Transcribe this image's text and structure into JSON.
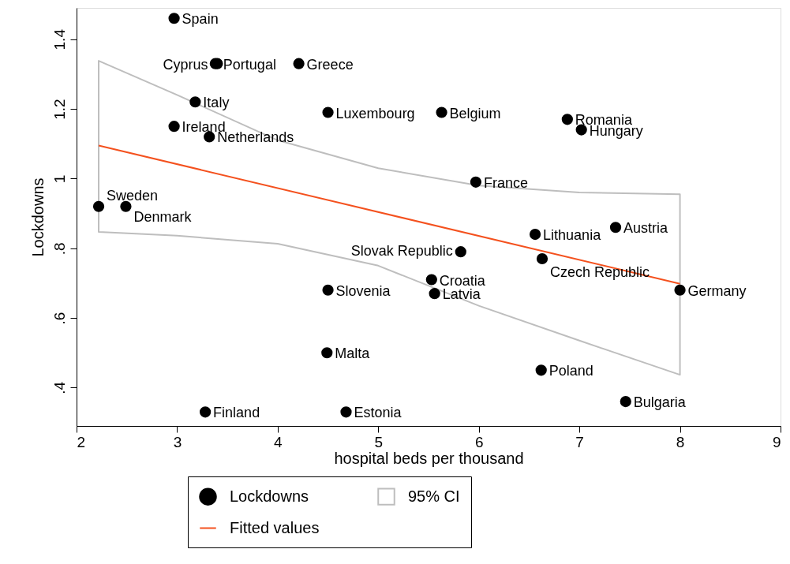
{
  "chart_data": {
    "type": "scatter",
    "xlabel": "hospital beds per thousand",
    "ylabel": "Lockdowns",
    "xlim": [
      2,
      9
    ],
    "ylim": [
      0.29,
      1.49
    ],
    "xticks": [
      2,
      3,
      4,
      5,
      6,
      7,
      8,
      9
    ],
    "yticks": [
      {
        "value": 0.4,
        "label": ".4"
      },
      {
        "value": 0.6,
        "label": ".6"
      },
      {
        "value": 0.8,
        "label": ".8"
      },
      {
        "value": 1,
        "label": "1"
      },
      {
        "value": 1.2,
        "label": "1.2"
      },
      {
        "value": 1.4,
        "label": "1.4"
      }
    ],
    "grid": false,
    "legend": "bottom",
    "series": [
      {
        "name": "Lockdowns",
        "color": "#000000",
        "x": [
          2.97,
          3.4,
          3.38,
          4.21,
          3.18,
          4.5,
          5.63,
          2.97,
          3.32,
          6.88,
          7.02,
          5.97,
          2.22,
          2.49,
          7.36,
          6.56,
          5.82,
          6.63,
          5.53,
          8.0,
          4.5,
          5.56,
          4.49,
          6.62,
          7.46,
          3.28,
          4.68
        ],
        "values": [
          1.46,
          1.33,
          1.33,
          1.33,
          1.22,
          1.19,
          1.19,
          1.15,
          1.12,
          1.17,
          1.14,
          0.99,
          0.92,
          0.92,
          0.86,
          0.84,
          0.79,
          0.77,
          0.71,
          0.68,
          0.68,
          0.67,
          0.5,
          0.45,
          0.36,
          0.33,
          0.33
        ]
      },
      {
        "name": "Fitted values",
        "type": "line",
        "color": "#f4511e",
        "x": [
          2.22,
          8.0
        ],
        "values": [
          1.095,
          0.698
        ]
      },
      {
        "name": "95% CI",
        "type": "area",
        "color": "#bebebe",
        "x": [
          2.22,
          3,
          4,
          5,
          6,
          7,
          8.0
        ],
        "values": [
          null,
          null,
          null,
          null,
          null,
          null,
          null
        ],
        "lower": [
          0.847,
          0.836,
          0.813,
          0.75,
          0.635,
          0.535,
          0.437
        ],
        "upper": [
          1.338,
          1.24,
          1.11,
          1.03,
          0.98,
          0.96,
          0.955
        ]
      }
    ],
    "annotations": [
      {
        "text": "Spain",
        "x": 2.97,
        "y": 1.46
      },
      {
        "text": "Cyprus",
        "x": 3.4,
        "y": 1.33
      },
      {
        "text": "Portugal",
        "x": 3.38,
        "y": 1.33
      },
      {
        "text": "Greece",
        "x": 4.21,
        "y": 1.33
      },
      {
        "text": "Italy",
        "x": 3.18,
        "y": 1.22
      },
      {
        "text": "Luxembourg",
        "x": 4.5,
        "y": 1.19
      },
      {
        "text": "Belgium",
        "x": 5.63,
        "y": 1.19
      },
      {
        "text": "Ireland",
        "x": 2.97,
        "y": 1.15
      },
      {
        "text": "Netherlands",
        "x": 3.32,
        "y": 1.12
      },
      {
        "text": "Romania",
        "x": 6.88,
        "y": 1.17
      },
      {
        "text": "Hungary",
        "x": 7.02,
        "y": 1.14
      },
      {
        "text": "France",
        "x": 5.97,
        "y": 0.99
      },
      {
        "text": "Sweden",
        "x": 2.22,
        "y": 0.92
      },
      {
        "text": "Denmark",
        "x": 2.49,
        "y": 0.92
      },
      {
        "text": "Austria",
        "x": 7.36,
        "y": 0.86
      },
      {
        "text": "Lithuania",
        "x": 6.56,
        "y": 0.84
      },
      {
        "text": "Slovak Republic",
        "x": 5.82,
        "y": 0.79
      },
      {
        "text": "Czech Republic",
        "x": 6.63,
        "y": 0.77
      },
      {
        "text": "Croatia",
        "x": 5.53,
        "y": 0.71
      },
      {
        "text": "Germany",
        "x": 8.0,
        "y": 0.68
      },
      {
        "text": "Slovenia",
        "x": 4.5,
        "y": 0.68
      },
      {
        "text": "Latvia",
        "x": 5.56,
        "y": 0.67
      },
      {
        "text": "Malta",
        "x": 4.49,
        "y": 0.5
      },
      {
        "text": "Poland",
        "x": 6.62,
        "y": 0.45
      },
      {
        "text": "Bulgaria",
        "x": 7.46,
        "y": 0.36
      },
      {
        "text": "Finland",
        "x": 3.28,
        "y": 0.33
      },
      {
        "text": "Estonia",
        "x": 4.68,
        "y": 0.33
      }
    ]
  }
}
